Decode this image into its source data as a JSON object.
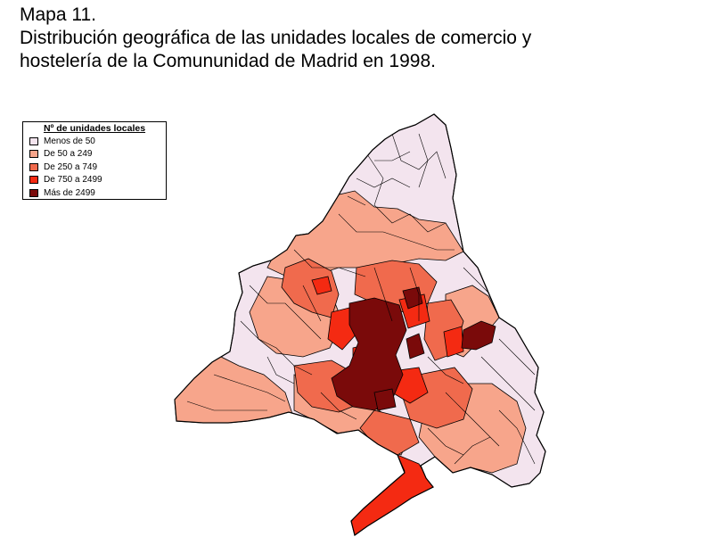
{
  "title": {
    "line1": "Mapa 11.",
    "line2": "Distribución geográfica de las unidades locales de comercio y",
    "line3": "hostelería de la Comununidad de Madrid en 1998."
  },
  "legend": {
    "title": "Nº de unidades locales",
    "items": [
      {
        "label": "Menos de 50",
        "color": "#f3e4ee"
      },
      {
        "label": "De 50 a 249",
        "color": "#f7a58b"
      },
      {
        "label": "De 250 a 749",
        "color": "#f06a4d"
      },
      {
        "label": "De 750 a 2499",
        "color": "#f42a12"
      },
      {
        "label": "Más de 2499",
        "color": "#7a0a0a"
      }
    ]
  }
}
